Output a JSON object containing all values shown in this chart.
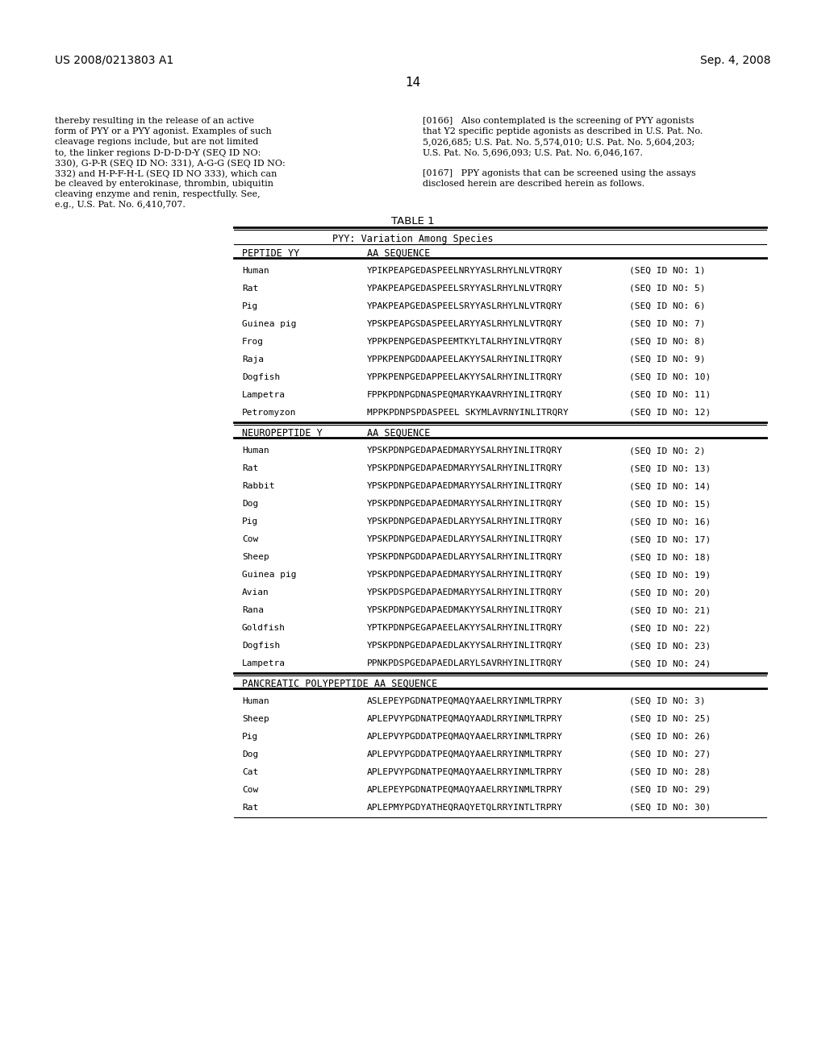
{
  "page_number": "14",
  "header_left": "US 2008/0213803 A1",
  "header_right": "Sep. 4, 2008",
  "left_paragraph": "thereby resulting in the release of an active form of PYY or a PYY agonist. Examples of such cleavage regions include, but are not limited to, the linker regions D-D-D-D-Y (SEQ ID NO: 330), G-P-R (SEQ ID NO: 331), A-G-G (SEQ ID NO: 332) and H-P-F-H-L (SEQ ID NO 333), which can be cleaved by enterokinase, thrombin, ubiquitin cleaving enzyme and renin, respectfully. See, e.g., U.S. Pat. No. 6,410,707.",
  "right_paragraph_166": "[0166]   Also contemplated is the screening of PYY agonists that Y2 specific peptide agonists as described in U.S. Pat. No. 5,026,685; U.S. Pat. No. 5,574,010; U.S. Pat. No. 5,604,203; U.S. Pat. No. 5,696,093; U.S. Pat. No. 6,046,167.",
  "right_paragraph_167": "[0167]   PPY agonists that can be screened using the assays disclosed herein are described herein as follows.",
  "table_title": "TABLE 1",
  "table_subtitle": "PYY: Variation Among Species",
  "sections": [
    {
      "header_col1": "PEPTIDE YY",
      "header_col2": "AA SEQUENCE",
      "rows": [
        [
          "Human",
          "YPIKPEAPGEDASPEELNRYYASLRHYLNLVTRQRY",
          "(SEQ ID NO: 1)"
        ],
        [
          "Rat",
          "YPAKPEAPGEDASPEELSRYYASLRHYLNLVTRQRY",
          "(SEQ ID NO: 5)"
        ],
        [
          "Pig",
          "YPAKPEAPGEDASPEELSRYYASLRHYLNLVTRQRY",
          "(SEQ ID NO: 6)"
        ],
        [
          "Guinea pig",
          "YPSKPEAPGSDASPEELARYYASLRHYLNLVTRQRY",
          "(SEQ ID NO: 7)"
        ],
        [
          "Frog",
          "YPPKPENPGEDASPEEMTKYLTALRHYINLVTRQRY",
          "(SEQ ID NO: 8)"
        ],
        [
          "Raja",
          "YPPKPENPGDDAAPEELAKYYSALRHYINLITRQRY",
          "(SEQ ID NO: 9)"
        ],
        [
          "Dogfish",
          "YPPKPENPGEDAPPEELAKYYSALRHYINLITRQRY",
          "(SEQ ID NO: 10)"
        ],
        [
          "Lampetra",
          "FPPKPDNPGDNASPEQMARYKAAVRHYINLITRQRY",
          "(SEQ ID NO: 11)"
        ],
        [
          "Petromyzon",
          "MPPKPDNPSPDASPEEL SKYMLAVRNYINLITRQRY",
          "(SEQ ID NO: 12)"
        ]
      ]
    },
    {
      "header_col1": "NEUROPEPTIDE Y",
      "header_col2": "AA SEQUENCE",
      "rows": [
        [
          "Human",
          "YPSKPDNPGEDAPAEDMARYYSALRHYINLITRQRY",
          "(SEQ ID NO: 2)"
        ],
        [
          "Rat",
          "YPSKPDNPGEDAPAEDMARYYSALRHYINLITRQRY",
          "(SEQ ID NO: 13)"
        ],
        [
          "Rabbit",
          "YPSKPDNPGEDAPAEDMARYYSALRHYINLITRQRY",
          "(SEQ ID NO: 14)"
        ],
        [
          "Dog",
          "YPSKPDNPGEDAPAEDMARYYSALRHYINLITRQRY",
          "(SEQ ID NO: 15)"
        ],
        [
          "Pig",
          "YPSKPDNPGEDAPAEDLARYYSALRHYINLITRQRY",
          "(SEQ ID NO: 16)"
        ],
        [
          "Cow",
          "YPSKPDNPGEDAPAEDLARYYSALRHYINLITRQRY",
          "(SEQ ID NO: 17)"
        ],
        [
          "Sheep",
          "YPSKPDNPGDDAPAEDLARYYSALRHYINLITRQRY",
          "(SEQ ID NO: 18)"
        ],
        [
          "Guinea pig",
          "YPSKPDNPGEDAPAEDMARYYSALRHYINLITRQRY",
          "(SEQ ID NO: 19)"
        ],
        [
          "Avian",
          "YPSKPDSPGEDAPAEDMARYYSALRHYINLITRQRY",
          "(SEQ ID NO: 20)"
        ],
        [
          "Rana",
          "YPSKPDNPGEDAPAEDMAKYYSALRHYINLITRQRY",
          "(SEQ ID NO: 21)"
        ],
        [
          "Goldfish",
          "YPTKPDNPGEGAPAEELAKYYSALRHYINLITRQRY",
          "(SEQ ID NO: 22)"
        ],
        [
          "Dogfish",
          "YPSKPDNPGEDAPAEDLAKYYSALRHYINLITRQRY",
          "(SEQ ID NO: 23)"
        ],
        [
          "Lampetra",
          "PPNKPDSPGEDAPAEDLARYLSAVRHYINLITRQRY",
          "(SEQ ID NO: 24)"
        ]
      ]
    },
    {
      "header_col1": "PANCREATIC POLYPEPTIDE",
      "header_col2": "AA SEQUENCE",
      "rows": [
        [
          "Human",
          "ASLEPEYPGDNATPEQMAQYAAELRRYINMLTRPRY",
          "(SEQ ID NO: 3)"
        ],
        [
          "Sheep",
          "APLEPVYPGDNATPEQMAQYAADLRRYINMLTRPRY",
          "(SEQ ID NO: 25)"
        ],
        [
          "Pig",
          "APLEPVYPGDDATPEQMAQYAAELRRYINMLTRPRY",
          "(SEQ ID NO: 26)"
        ],
        [
          "Dog",
          "APLEPVYPGDDATPEQMAQYAAELRRYINMLTRPRY",
          "(SEQ ID NO: 27)"
        ],
        [
          "Cat",
          "APLEPVYPGDNATPEQMAQYAAELRRYINMLTRPRY",
          "(SEQ ID NO: 28)"
        ],
        [
          "Cow",
          "APLEPEYPGDNATPEQMAQYAAELRRYINMLTRPRY",
          "(SEQ ID NO: 29)"
        ],
        [
          "Rat",
          "APLEPMYPGDYATHEQRAQYETQLRRYINTLTRPRY",
          "(SEQ ID NO: 30)"
        ]
      ]
    }
  ],
  "bg_color": "#ffffff",
  "text_color": "#000000",
  "font_size_header": 9.5,
  "font_size_body": 8.5,
  "font_size_table": 8.5
}
